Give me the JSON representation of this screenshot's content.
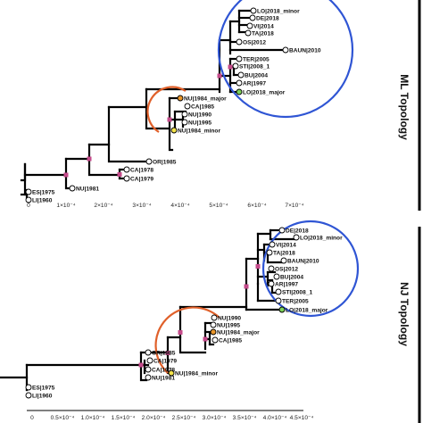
{
  "panels": [
    {
      "id": "ml",
      "title": "ML Topology",
      "ticks": [
        "0",
        "1×10⁻⁴",
        "2×10⁻⁴",
        "3×10⁻⁴",
        "4×10⁻⁴",
        "5×10⁻⁴",
        "6×10⁻⁴",
        "7×10⁻⁴"
      ],
      "leaves": [
        "LO|2018_minor",
        "DE|2018",
        "VI|2014",
        "TA|2018",
        "OS|2012",
        "BAUN|2010",
        "TER|2005",
        "STI|2008_1",
        "BU|2004",
        "AR|1997",
        "LO|2018_major",
        "NU|1984_major",
        "CA|1985",
        "NU|1990",
        "NU|1995",
        "NU|1984_minor",
        "OR|1985",
        "CA|1978",
        "CA|1979",
        "NU|1981",
        "ES|1975",
        "LI|1960"
      ]
    },
    {
      "id": "nj",
      "title": "NJ Topology",
      "ticks": [
        "0",
        "0.5×10⁻⁴",
        "1.0×10⁻⁴",
        "1.5×10⁻⁴",
        "2.0×10⁻⁴",
        "2.5×10⁻⁴",
        "3.0×10⁻⁴",
        "3.5×10⁻⁴",
        "4.0×10⁻⁴",
        "4.5×10⁻⁴"
      ],
      "leaves": [
        "DE|2018",
        "LO|2018_minor",
        "VI|2014",
        "TA|2018",
        "BAUN|2010",
        "OS|2012",
        "BU|2004",
        "AR|1997",
        "STI|2008_1",
        "TER|2005",
        "LO|2018_major",
        "NU|1990",
        "NU|1995",
        "NU|1984_major",
        "CA|1985",
        "NU|1984_minor",
        "OR|1985",
        "CA|1979",
        "CA|1978",
        "NU|1981",
        "ES|1975",
        "LI|1960"
      ]
    }
  ],
  "colors": {
    "highlight_blue": "#2f55d4",
    "highlight_orange": "#e0602a",
    "node_yellow": "#f4e34a",
    "node_green": "#7ed35a",
    "node_orange": "#e9962a",
    "support_pink": "#c44a8a"
  }
}
